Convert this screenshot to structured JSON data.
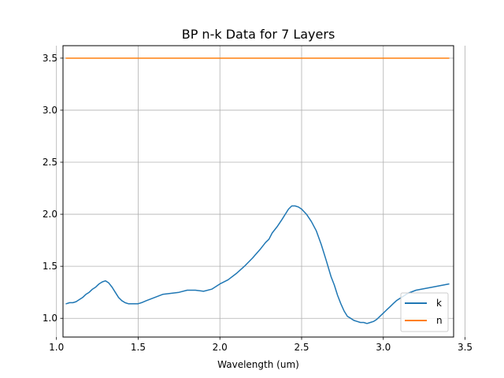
{
  "chart_data": {
    "type": "line",
    "title": "BP n-k Data for 7 Layers",
    "xlabel": "Wavelength (um)",
    "ylabel": "",
    "xlim": [
      1.04,
      3.43
    ],
    "ylim": [
      0.82,
      3.62
    ],
    "xticks": [
      1.0,
      1.5,
      2.0,
      2.5,
      3.0,
      3.5
    ],
    "xtick_labels": [
      "1.0",
      "1.5",
      "2.0",
      "2.5",
      "3.0",
      "3.5"
    ],
    "yticks": [
      1.0,
      1.5,
      2.0,
      2.5,
      3.0,
      3.5
    ],
    "ytick_labels": [
      "1.0",
      "1.5",
      "2.0",
      "2.5",
      "3.0",
      "3.5"
    ],
    "grid": true,
    "legend_position": "lower-right",
    "series": [
      {
        "name": "k",
        "color": "#1f77b4",
        "x": [
          1.06,
          1.08,
          1.1,
          1.12,
          1.14,
          1.16,
          1.18,
          1.2,
          1.22,
          1.24,
          1.26,
          1.28,
          1.3,
          1.32,
          1.34,
          1.36,
          1.38,
          1.4,
          1.42,
          1.44,
          1.46,
          1.48,
          1.5,
          1.52,
          1.55,
          1.6,
          1.65,
          1.7,
          1.75,
          1.8,
          1.85,
          1.9,
          1.95,
          2.0,
          2.05,
          2.1,
          2.15,
          2.2,
          2.25,
          2.28,
          2.3,
          2.32,
          2.35,
          2.38,
          2.4,
          2.42,
          2.44,
          2.46,
          2.48,
          2.5,
          2.53,
          2.56,
          2.59,
          2.62,
          2.65,
          2.68,
          2.7,
          2.72,
          2.74,
          2.76,
          2.78,
          2.8,
          2.82,
          2.84,
          2.86,
          2.88,
          2.9,
          2.92,
          2.94,
          2.96,
          2.98,
          3.0,
          3.02,
          3.04,
          3.06,
          3.08,
          3.1,
          3.12,
          3.15,
          3.2,
          3.3,
          3.4
        ],
        "y": [
          1.14,
          1.15,
          1.15,
          1.16,
          1.18,
          1.2,
          1.23,
          1.25,
          1.28,
          1.3,
          1.33,
          1.35,
          1.36,
          1.34,
          1.3,
          1.25,
          1.2,
          1.17,
          1.15,
          1.14,
          1.14,
          1.14,
          1.14,
          1.15,
          1.17,
          1.2,
          1.23,
          1.24,
          1.25,
          1.27,
          1.27,
          1.26,
          1.28,
          1.33,
          1.37,
          1.43,
          1.5,
          1.58,
          1.67,
          1.73,
          1.76,
          1.82,
          1.88,
          1.95,
          2.0,
          2.05,
          2.08,
          2.08,
          2.07,
          2.05,
          2.0,
          1.93,
          1.84,
          1.71,
          1.56,
          1.4,
          1.32,
          1.22,
          1.14,
          1.07,
          1.02,
          1.0,
          0.98,
          0.97,
          0.96,
          0.96,
          0.95,
          0.96,
          0.97,
          0.99,
          1.02,
          1.05,
          1.08,
          1.11,
          1.14,
          1.17,
          1.19,
          1.21,
          1.24,
          1.27,
          1.3,
          1.33
        ]
      },
      {
        "name": "n",
        "color": "#ff7f0e",
        "x": [
          1.06,
          3.4
        ],
        "y": [
          3.5,
          3.5
        ]
      }
    ]
  }
}
